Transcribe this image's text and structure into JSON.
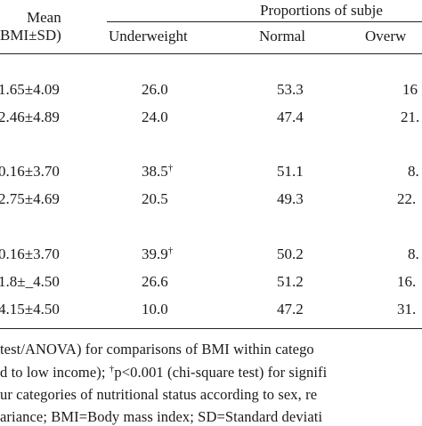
{
  "table": {
    "header": {
      "mean_line1": "Mean",
      "mean_line2": "BMI±SD)",
      "group_label": "Proportions of subje",
      "col_underweight": "Underweight",
      "col_normal": "Normal",
      "col_overweight": "Overw"
    },
    "rows": [
      {
        "mean": "1.65±4.09",
        "under": "26.0",
        "under_sup": "",
        "normal": "53.3",
        "over": "16"
      },
      {
        "mean": "2.46±4.89",
        "under": "24.0",
        "under_sup": "",
        "normal": "47.4",
        "over": "21."
      },
      {
        "mean": "0.16±3.70",
        "under": "38.5",
        "under_sup": "†",
        "normal": "51.1",
        "over": "8."
      },
      {
        "mean": "2.75±4.69",
        "under": "20.5",
        "under_sup": "",
        "normal": "49.3",
        "over": "22."
      },
      {
        "mean": "0.16±3.70",
        "under": "39.9",
        "under_sup": "†",
        "normal": "50.2",
        "over": "8."
      },
      {
        "mean": "1.8±_4.50",
        "under": "26.6",
        "under_sup": "",
        "normal": "51.2",
        "over": "16."
      },
      {
        "mean": "4.15±4.50",
        "under": "10.0",
        "under_sup": "",
        "normal": "47.2",
        "over": "31."
      }
    ]
  },
  "footnotes": {
    "line1": "test/ANOVA) for comparisons of BMI within catego",
    "line2_a": "d to low income); ",
    "line2_sup": "†",
    "line2_b": "p<0.001 (chi-square test) for signifi",
    "line3": "ur categories of nutritional status according to sex, re",
    "line4": "ariance; BMI=Body mass index;  SD=Standard deviati"
  }
}
